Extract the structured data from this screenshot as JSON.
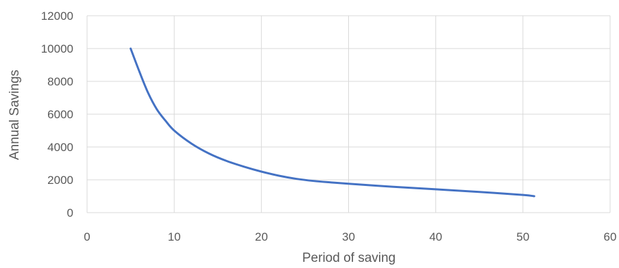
{
  "chart_data": {
    "type": "scatter",
    "xlabel": "Period of saving",
    "ylabel": "Annual Savings",
    "xlim": [
      0,
      60
    ],
    "ylim": [
      0,
      12000
    ],
    "xticks": [
      0,
      10,
      20,
      30,
      40,
      50,
      60
    ],
    "yticks": [
      0,
      2000,
      4000,
      6000,
      8000,
      10000,
      12000
    ],
    "grid": true,
    "series": [
      {
        "color": "#4472c4",
        "x": [
          5,
          6,
          7,
          8,
          9,
          10,
          12,
          14,
          16,
          18,
          20,
          22,
          24,
          26,
          28,
          30,
          35,
          40,
          45,
          50,
          51.3
        ],
        "y": [
          10000,
          8600,
          7300,
          6300,
          5600,
          5000,
          4200,
          3600,
          3150,
          2800,
          2500,
          2250,
          2060,
          1930,
          1840,
          1760,
          1580,
          1420,
          1260,
          1080,
          1000
        ]
      }
    ]
  }
}
